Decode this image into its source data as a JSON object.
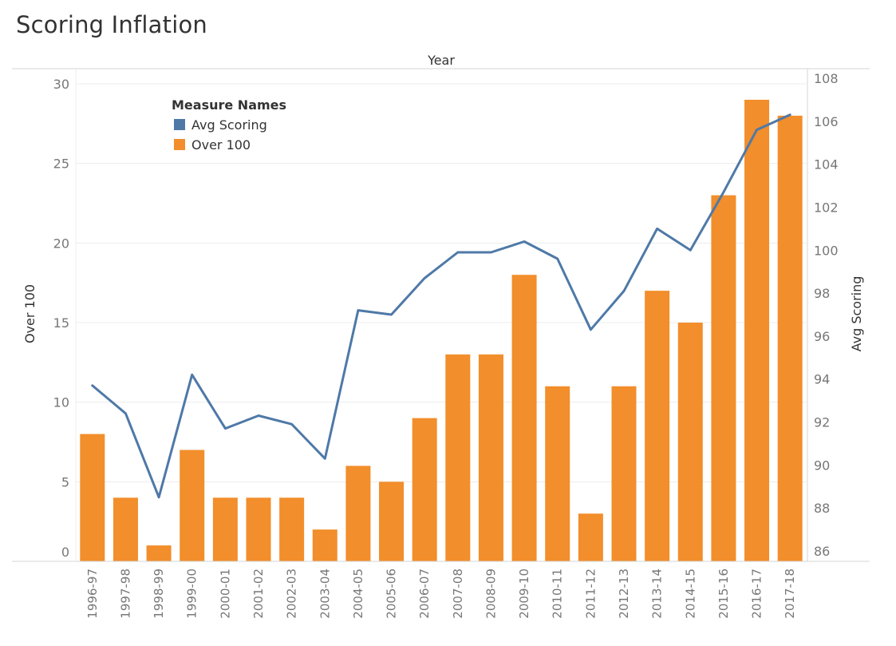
{
  "title": "Scoring Inflation",
  "chart_data": {
    "type": "bar",
    "combo": "bar + line (dual axis)",
    "title": "Scoring Inflation",
    "column_header": "Year",
    "categories": [
      "1996-97",
      "1997-98",
      "1998-99",
      "1999-00",
      "2000-01",
      "2001-02",
      "2002-03",
      "2003-04",
      "2004-05",
      "2005-06",
      "2006-07",
      "2007-08",
      "2008-09",
      "2009-10",
      "2010-11",
      "2011-12",
      "2012-13",
      "2013-14",
      "2014-15",
      "2015-16",
      "2016-17",
      "2017-18"
    ],
    "series": [
      {
        "name": "Over 100",
        "mark": "bar",
        "axis": "left",
        "color": "#F28E2B",
        "values": [
          8,
          4,
          1,
          7,
          4,
          4,
          4,
          2,
          6,
          5,
          9,
          13,
          13,
          18,
          11,
          3,
          11,
          17,
          15,
          23,
          29,
          28
        ]
      },
      {
        "name": "Avg Scoring",
        "mark": "line",
        "axis": "right",
        "color": "#4E79A7",
        "values": [
          93.7,
          92.4,
          88.5,
          94.2,
          91.7,
          92.3,
          91.9,
          90.3,
          97.2,
          97.0,
          98.7,
          99.9,
          99.9,
          100.4,
          99.6,
          96.3,
          98.1,
          101.0,
          100.0,
          102.7,
          105.6,
          106.3
        ]
      }
    ],
    "ylabel_left": "Over 100",
    "ylim_left": [
      0,
      30
    ],
    "yticks_left": [
      0,
      5,
      10,
      15,
      20,
      25,
      30
    ],
    "ylabel_right": "Avg Scoring",
    "ylim_right": [
      86,
      108
    ],
    "yticks_right": [
      86,
      88,
      90,
      92,
      94,
      96,
      98,
      100,
      102,
      104,
      106,
      108
    ],
    "legend": {
      "title": "Measure Names",
      "placement": "top-left",
      "items": [
        {
          "label": "Avg Scoring",
          "color": "#4E79A7"
        },
        {
          "label": "Over 100",
          "color": "#F28E2B"
        }
      ]
    },
    "grid": "horizontal"
  }
}
